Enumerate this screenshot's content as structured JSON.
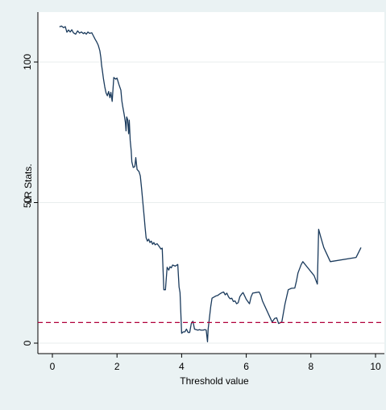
{
  "chart_data": {
    "type": "line",
    "title": "",
    "xlabel": "Threshold value",
    "ylabel": "LR Stats.",
    "xlim": [
      0,
      10
    ],
    "ylim": [
      0,
      115
    ],
    "x_ticks": [
      0,
      2,
      4,
      6,
      8,
      10
    ],
    "y_ticks": [
      0,
      50,
      100
    ],
    "x_tick_labels": [
      "0",
      "2",
      "4",
      "6",
      "8",
      "10"
    ],
    "y_tick_labels": [
      "0",
      "50",
      "100"
    ],
    "grid": "horizontal",
    "series": [
      {
        "color": "#1a3a5c",
        "points": [
          [
            0.22,
            112.5
          ],
          [
            0.28,
            112.8
          ],
          [
            0.35,
            112.2
          ],
          [
            0.4,
            112.6
          ],
          [
            0.45,
            110.6
          ],
          [
            0.5,
            111.4
          ],
          [
            0.55,
            110.7
          ],
          [
            0.6,
            111.5
          ],
          [
            0.65,
            110.4
          ],
          [
            0.72,
            109.9
          ],
          [
            0.78,
            111.1
          ],
          [
            0.84,
            110.3
          ],
          [
            0.9,
            110.7
          ],
          [
            0.96,
            110.1
          ],
          [
            1.0,
            110.5
          ],
          [
            1.05,
            109.9
          ],
          [
            1.1,
            110.7
          ],
          [
            1.15,
            110.2
          ],
          [
            1.22,
            110.4
          ],
          [
            1.27,
            109.3
          ],
          [
            1.32,
            108.2
          ],
          [
            1.37,
            107.2
          ],
          [
            1.42,
            106.0
          ],
          [
            1.47,
            104.0
          ],
          [
            1.5,
            101.5
          ],
          [
            1.52,
            99.0
          ],
          [
            1.55,
            96.6
          ],
          [
            1.58,
            94.0
          ],
          [
            1.62,
            91.2
          ],
          [
            1.66,
            89.0
          ],
          [
            1.7,
            88.0
          ],
          [
            1.74,
            89.5
          ],
          [
            1.78,
            87.3
          ],
          [
            1.81,
            89.2
          ],
          [
            1.85,
            86.0
          ],
          [
            1.9,
            94.5
          ],
          [
            1.96,
            93.9
          ],
          [
            2.0,
            94.3
          ],
          [
            2.06,
            92.0
          ],
          [
            2.12,
            90.0
          ],
          [
            2.15,
            86.2
          ],
          [
            2.18,
            84.0
          ],
          [
            2.22,
            81.5
          ],
          [
            2.26,
            78.5
          ],
          [
            2.28,
            75.5
          ],
          [
            2.3,
            80.5
          ],
          [
            2.33,
            79.5
          ],
          [
            2.36,
            74.5
          ],
          [
            2.38,
            79.3
          ],
          [
            2.41,
            72.0
          ],
          [
            2.44,
            68.5
          ],
          [
            2.46,
            64.5
          ],
          [
            2.5,
            62.5
          ],
          [
            2.55,
            62.8
          ],
          [
            2.58,
            66.0
          ],
          [
            2.62,
            61.8
          ],
          [
            2.68,
            61.0
          ],
          [
            2.72,
            59.5
          ],
          [
            2.76,
            55.0
          ],
          [
            2.8,
            50.0
          ],
          [
            2.84,
            45.0
          ],
          [
            2.87,
            41.0
          ],
          [
            2.9,
            37.5
          ],
          [
            2.94,
            36.3
          ],
          [
            2.98,
            37.0
          ],
          [
            3.02,
            35.8
          ],
          [
            3.06,
            36.3
          ],
          [
            3.1,
            35.2
          ],
          [
            3.14,
            35.8
          ],
          [
            3.18,
            35.0
          ],
          [
            3.24,
            35.4
          ],
          [
            3.3,
            34.5
          ],
          [
            3.36,
            33.5
          ],
          [
            3.4,
            33.8
          ],
          [
            3.45,
            19.0
          ],
          [
            3.5,
            19.0
          ],
          [
            3.52,
            22.5
          ],
          [
            3.55,
            27.0
          ],
          [
            3.6,
            26.0
          ],
          [
            3.64,
            27.2
          ],
          [
            3.68,
            26.8
          ],
          [
            3.72,
            27.8
          ],
          [
            3.8,
            27.4
          ],
          [
            3.88,
            28.0
          ],
          [
            3.92,
            20.0
          ],
          [
            3.95,
            18.0
          ],
          [
            4.0,
            3.5
          ],
          [
            4.05,
            4.0
          ],
          [
            4.1,
            4.0
          ],
          [
            4.15,
            5.0
          ],
          [
            4.2,
            3.8
          ],
          [
            4.25,
            3.8
          ],
          [
            4.3,
            7.0
          ],
          [
            4.35,
            7.8
          ],
          [
            4.4,
            5.0
          ],
          [
            4.45,
            4.8
          ],
          [
            4.5,
            4.6
          ],
          [
            4.55,
            4.8
          ],
          [
            4.6,
            4.6
          ],
          [
            4.66,
            4.6
          ],
          [
            4.72,
            4.8
          ],
          [
            4.76,
            4.6
          ],
          [
            4.8,
            0.5
          ],
          [
            4.82,
            5.0
          ],
          [
            4.86,
            9.0
          ],
          [
            4.9,
            13.0
          ],
          [
            4.94,
            16.0
          ],
          [
            5.0,
            16.4
          ],
          [
            5.06,
            16.8
          ],
          [
            5.12,
            17.0
          ],
          [
            5.18,
            17.5
          ],
          [
            5.25,
            18.0
          ],
          [
            5.3,
            18.2
          ],
          [
            5.35,
            17.2
          ],
          [
            5.4,
            17.8
          ],
          [
            5.45,
            16.5
          ],
          [
            5.5,
            15.8
          ],
          [
            5.55,
            16.0
          ],
          [
            5.6,
            14.8
          ],
          [
            5.65,
            15.0
          ],
          [
            5.7,
            14.0
          ],
          [
            5.75,
            14.4
          ],
          [
            5.8,
            16.5
          ],
          [
            5.86,
            17.5
          ],
          [
            5.9,
            18.0
          ],
          [
            6.0,
            15.6
          ],
          [
            6.1,
            14.0
          ],
          [
            6.15,
            16.5
          ],
          [
            6.2,
            17.8
          ],
          [
            6.3,
            18.0
          ],
          [
            6.4,
            18.2
          ],
          [
            6.45,
            17.0
          ],
          [
            6.5,
            15.0
          ],
          [
            6.8,
            7.5
          ],
          [
            6.88,
            8.8
          ],
          [
            6.94,
            9.0
          ],
          [
            7.0,
            7.0
          ],
          [
            7.1,
            7.5
          ],
          [
            7.2,
            14.0
          ],
          [
            7.3,
            19.0
          ],
          [
            7.4,
            19.5
          ],
          [
            7.5,
            19.6
          ],
          [
            7.55,
            22.0
          ],
          [
            7.6,
            25.0
          ],
          [
            7.7,
            28.0
          ],
          [
            7.75,
            29.0
          ],
          [
            8.1,
            24.0
          ],
          [
            8.2,
            21.0
          ],
          [
            8.24,
            40.5
          ],
          [
            8.3,
            38.0
          ],
          [
            8.4,
            34.0
          ],
          [
            8.6,
            29.0
          ],
          [
            9.4,
            30.5
          ],
          [
            9.55,
            34.0
          ]
        ]
      }
    ],
    "reference_line": {
      "y": 7.35,
      "style": "dashed",
      "color": "#b0003a"
    }
  }
}
